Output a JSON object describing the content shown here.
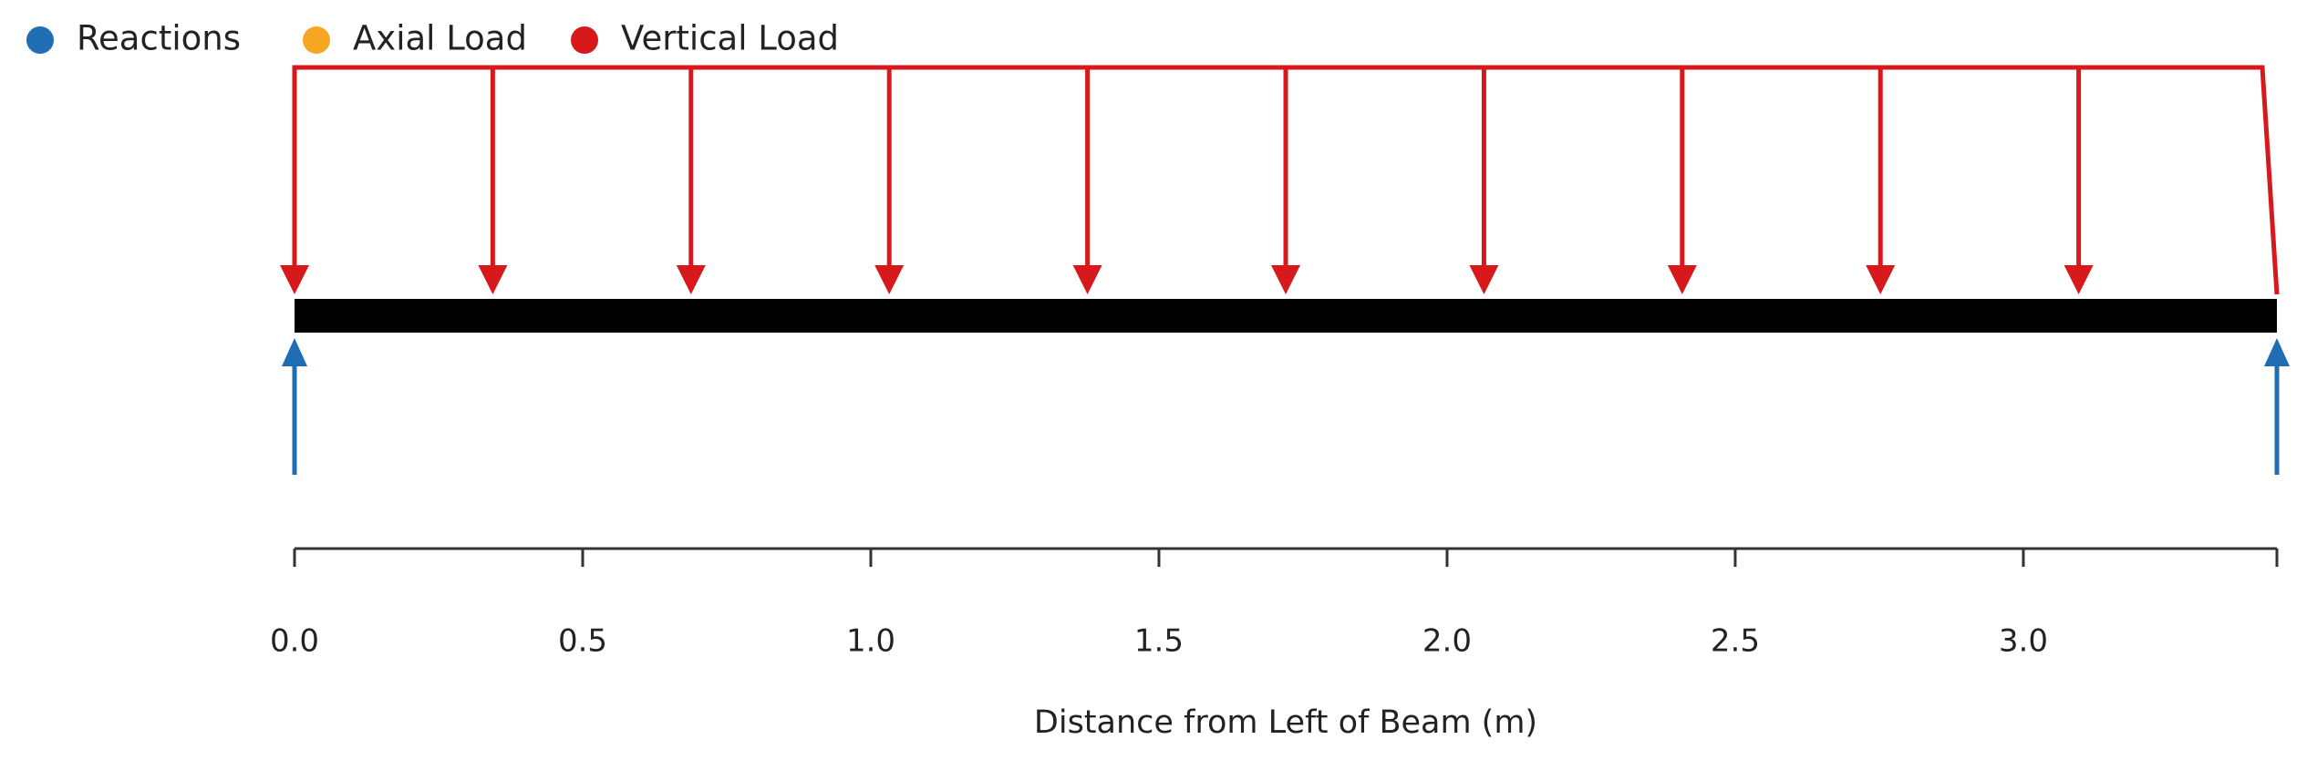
{
  "legend": [
    {
      "label": "Reactions",
      "color": "#1f6db3"
    },
    {
      "label": "Axial Load",
      "color": "#f5a623"
    },
    {
      "label": "Vertical Load",
      "color": "#d7191c"
    }
  ],
  "beam": {
    "start": 0,
    "end": 3.44,
    "color": "#000000"
  },
  "reactions": {
    "positions": [
      0,
      3.44
    ],
    "color": "#1f6db3"
  },
  "vertical_load": {
    "start": 0,
    "end": 3.44,
    "color": "#d7191c",
    "arrows": [
      0,
      0.344,
      0.688,
      1.032,
      1.376,
      1.72,
      2.064,
      2.408,
      2.752,
      3.096
    ]
  },
  "x_axis": {
    "label": "Distance from Left of Beam (m)",
    "xlim": [
      0,
      3.44
    ],
    "xticks": [
      {
        "value": 0,
        "label": "0.0"
      },
      {
        "value": 0.5,
        "label": "0.5"
      },
      {
        "value": 1,
        "label": "1.0"
      },
      {
        "value": 1.5,
        "label": "1.5"
      },
      {
        "value": 2,
        "label": "2.0"
      },
      {
        "value": 2.5,
        "label": "2.5"
      },
      {
        "value": 3,
        "label": "3.0"
      }
    ]
  }
}
